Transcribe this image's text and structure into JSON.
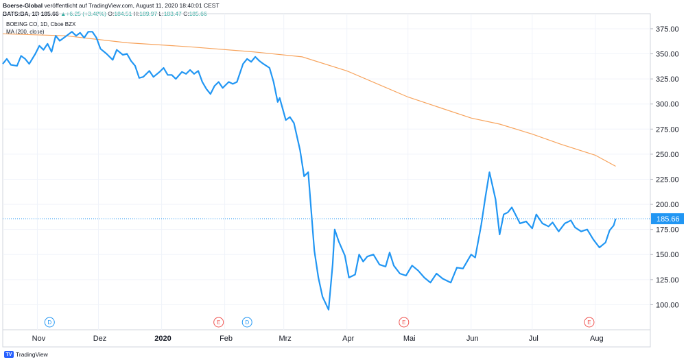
{
  "header": {
    "publisher": "Boerse-Global",
    "published_text": "veröffentlicht auf TradingView.com, August 11, 2020 18:40:01 CEST",
    "symbol": "BATS:BA, 1D",
    "last": "185.66",
    "change": "+6.25 (+3.48%)",
    "open_label": "O:",
    "open": "184.51",
    "high_label": "H:",
    "high": "189.97",
    "low_label": "L:",
    "low": "183.47",
    "close_label": "C:",
    "close": "185.66"
  },
  "footer": {
    "brand": "TradingView",
    "logo_glyph": "TV"
  },
  "chart_data": {
    "type": "line",
    "legend": [
      "BOEING CO, 1D, Cboe BZX",
      "MA (200, close)"
    ],
    "ylim": [
      75,
      390
    ],
    "y_ticks": [
      100,
      125,
      150,
      175,
      200,
      225,
      250,
      275,
      300,
      325,
      350,
      375
    ],
    "y_tick_labels": [
      "100.00",
      "125.00",
      "150.00",
      "175.00",
      "200.00",
      "225.00",
      "250.00",
      "275.00",
      "300.00",
      "325.00",
      "350.00",
      "375.00"
    ],
    "x_ticks": [
      {
        "label": "Nov",
        "date": "2019-11-01"
      },
      {
        "label": "Dez",
        "date": "2019-12-01"
      },
      {
        "label": "2020",
        "date": "2020-01-01"
      },
      {
        "label": "Feb",
        "date": "2020-02-01"
      },
      {
        "label": "Mrz",
        "date": "2020-03-01"
      },
      {
        "label": "Apr",
        "date": "2020-04-01"
      },
      {
        "label": "Mai",
        "date": "2020-05-01"
      },
      {
        "label": "Jun",
        "date": "2020-06-01"
      },
      {
        "label": "Jul",
        "date": "2020-07-01"
      },
      {
        "label": "Aug",
        "date": "2020-08-01"
      }
    ],
    "xlim": [
      "2019-10-15",
      "2020-08-28"
    ],
    "last_price": 185.66,
    "last_price_label": "185.66",
    "price_color": "#2196f3",
    "ma_color": "#f7a35c",
    "events": [
      {
        "label": "D",
        "date": "2019-11-07",
        "color": "#2196f3"
      },
      {
        "label": "E",
        "date": "2020-01-29",
        "color": "#ef5350"
      },
      {
        "label": "D",
        "date": "2020-02-12",
        "color": "#2196f3"
      },
      {
        "label": "E",
        "date": "2020-04-29",
        "color": "#ef5350"
      },
      {
        "label": "E",
        "date": "2020-07-29",
        "color": "#ef5350"
      }
    ],
    "series": [
      {
        "name": "BOEING CO, 1D, Cboe BZX",
        "points": [
          [
            "2019-10-15",
            340
          ],
          [
            "2019-10-17",
            345
          ],
          [
            "2019-10-19",
            339
          ],
          [
            "2019-10-22",
            338
          ],
          [
            "2019-10-24",
            348
          ],
          [
            "2019-10-26",
            345
          ],
          [
            "2019-10-28",
            340
          ],
          [
            "2019-10-31",
            350
          ],
          [
            "2019-11-02",
            358
          ],
          [
            "2019-11-04",
            354
          ],
          [
            "2019-11-06",
            360
          ],
          [
            "2019-11-08",
            352
          ],
          [
            "2019-11-10",
            368
          ],
          [
            "2019-11-12",
            363
          ],
          [
            "2019-11-14",
            366
          ],
          [
            "2019-11-18",
            372
          ],
          [
            "2019-11-20",
            368
          ],
          [
            "2019-11-22",
            371
          ],
          [
            "2019-11-24",
            366
          ],
          [
            "2019-11-26",
            372
          ],
          [
            "2019-11-28",
            372
          ],
          [
            "2019-11-30",
            366
          ],
          [
            "2019-12-02",
            355
          ],
          [
            "2019-12-05",
            350
          ],
          [
            "2019-12-08",
            344
          ],
          [
            "2019-12-10",
            354
          ],
          [
            "2019-12-13",
            349
          ],
          [
            "2019-12-15",
            350
          ],
          [
            "2019-12-17",
            343
          ],
          [
            "2019-12-19",
            338
          ],
          [
            "2019-12-21",
            326
          ],
          [
            "2019-12-23",
            327
          ],
          [
            "2019-12-26",
            333
          ],
          [
            "2019-12-28",
            327
          ],
          [
            "2019-12-31",
            332
          ],
          [
            "2020-01-02",
            336
          ],
          [
            "2020-01-04",
            329
          ],
          [
            "2020-01-06",
            329
          ],
          [
            "2020-01-08",
            325
          ],
          [
            "2020-01-11",
            332
          ],
          [
            "2020-01-13",
            330
          ],
          [
            "2020-01-15",
            334
          ],
          [
            "2020-01-17",
            330
          ],
          [
            "2020-01-19",
            333
          ],
          [
            "2020-01-21",
            322
          ],
          [
            "2020-01-23",
            315
          ],
          [
            "2020-01-25",
            310
          ],
          [
            "2020-01-27",
            318
          ],
          [
            "2020-01-29",
            322
          ],
          [
            "2020-01-31",
            316
          ],
          [
            "2020-02-03",
            322
          ],
          [
            "2020-02-05",
            320
          ],
          [
            "2020-02-07",
            322
          ],
          [
            "2020-02-10",
            340
          ],
          [
            "2020-02-12",
            345
          ],
          [
            "2020-02-14",
            342
          ],
          [
            "2020-02-16",
            347
          ],
          [
            "2020-02-18",
            343
          ],
          [
            "2020-02-20",
            340
          ],
          [
            "2020-02-23",
            336
          ],
          [
            "2020-02-25",
            322
          ],
          [
            "2020-02-27",
            302
          ],
          [
            "2020-02-28",
            306
          ],
          [
            "2020-03-02",
            284
          ],
          [
            "2020-03-04",
            287
          ],
          [
            "2020-03-06",
            281
          ],
          [
            "2020-03-09",
            254
          ],
          [
            "2020-03-11",
            228
          ],
          [
            "2020-03-13",
            232
          ],
          [
            "2020-03-16",
            154
          ],
          [
            "2020-03-18",
            127
          ],
          [
            "2020-03-20",
            108
          ],
          [
            "2020-03-23",
            95
          ],
          [
            "2020-03-25",
            140
          ],
          [
            "2020-03-26",
            175
          ],
          [
            "2020-03-28",
            163
          ],
          [
            "2020-03-31",
            149
          ],
          [
            "2020-04-02",
            127
          ],
          [
            "2020-04-05",
            130
          ],
          [
            "2020-04-07",
            150
          ],
          [
            "2020-04-09",
            143
          ],
          [
            "2020-04-11",
            148
          ],
          [
            "2020-04-14",
            150
          ],
          [
            "2020-04-17",
            140
          ],
          [
            "2020-04-20",
            138
          ],
          [
            "2020-04-22",
            152
          ],
          [
            "2020-04-24",
            139
          ],
          [
            "2020-04-27",
            131
          ],
          [
            "2020-04-30",
            129
          ],
          [
            "2020-05-03",
            139
          ],
          [
            "2020-05-06",
            134
          ],
          [
            "2020-05-09",
            127
          ],
          [
            "2020-05-12",
            122
          ],
          [
            "2020-05-15",
            131
          ],
          [
            "2020-05-18",
            126
          ],
          [
            "2020-05-22",
            122
          ],
          [
            "2020-05-25",
            137
          ],
          [
            "2020-05-28",
            136
          ],
          [
            "2020-06-01",
            150
          ],
          [
            "2020-06-03",
            147
          ],
          [
            "2020-06-06",
            180
          ],
          [
            "2020-06-08",
            207
          ],
          [
            "2020-06-10",
            232
          ],
          [
            "2020-06-13",
            205
          ],
          [
            "2020-06-15",
            170
          ],
          [
            "2020-06-17",
            190
          ],
          [
            "2020-06-19",
            192
          ],
          [
            "2020-06-21",
            197
          ],
          [
            "2020-06-23",
            189
          ],
          [
            "2020-06-25",
            181
          ],
          [
            "2020-06-28",
            183
          ],
          [
            "2020-07-01",
            176
          ],
          [
            "2020-07-03",
            190
          ],
          [
            "2020-07-06",
            181
          ],
          [
            "2020-07-09",
            178
          ],
          [
            "2020-07-11",
            182
          ],
          [
            "2020-07-14",
            173
          ],
          [
            "2020-07-17",
            181
          ],
          [
            "2020-07-20",
            184
          ],
          [
            "2020-07-22",
            177
          ],
          [
            "2020-07-25",
            173
          ],
          [
            "2020-07-28",
            175
          ],
          [
            "2020-07-31",
            165
          ],
          [
            "2020-08-03",
            157
          ],
          [
            "2020-08-06",
            162
          ],
          [
            "2020-08-08",
            174
          ],
          [
            "2020-08-10",
            179
          ],
          [
            "2020-08-11",
            185.66
          ]
        ]
      },
      {
        "name": "MA (200, close)",
        "points": [
          [
            "2019-10-15",
            370
          ],
          [
            "2019-11-15",
            368
          ],
          [
            "2019-12-15",
            361
          ],
          [
            "2020-01-15",
            357
          ],
          [
            "2020-02-15",
            352
          ],
          [
            "2020-03-10",
            347
          ],
          [
            "2020-04-01",
            333
          ],
          [
            "2020-05-01",
            307
          ],
          [
            "2020-06-01",
            286
          ],
          [
            "2020-06-15",
            280
          ],
          [
            "2020-07-01",
            270
          ],
          [
            "2020-07-15",
            260
          ],
          [
            "2020-08-01",
            249
          ],
          [
            "2020-08-11",
            238
          ]
        ]
      }
    ]
  }
}
